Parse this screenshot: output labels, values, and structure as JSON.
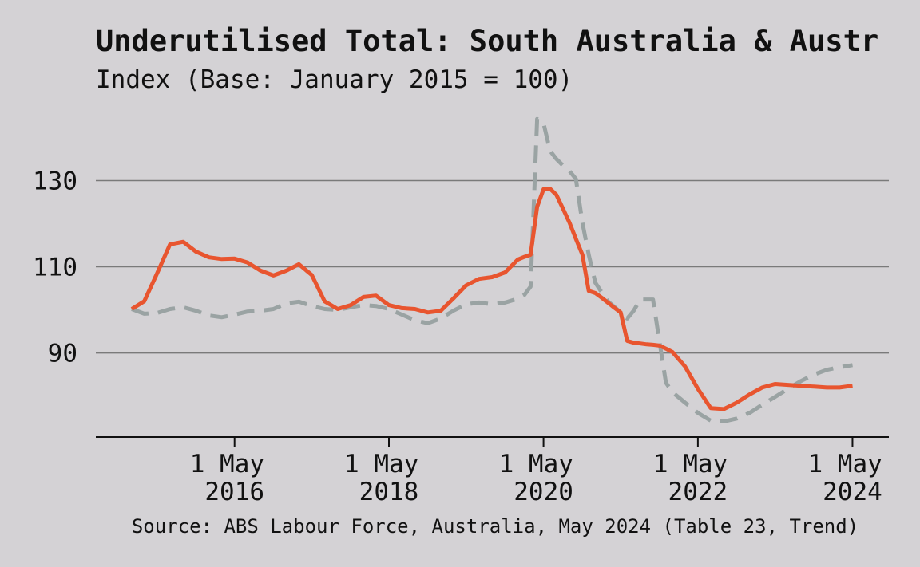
{
  "chart_data": {
    "type": "line",
    "title": "Underutilised Total: South Australia & Austr",
    "subtitle": "Index (Base: January 2015 = 100)",
    "source": "Source: ABS Labour Force, Australia, May 2024 (Table 23, Trend)",
    "x": [
      "2015-01-01",
      "2015-03-01",
      "2015-05-01",
      "2015-07-01",
      "2015-09-01",
      "2015-11-01",
      "2016-01-01",
      "2016-03-01",
      "2016-05-01",
      "2016-07-01",
      "2016-09-01",
      "2016-11-01",
      "2017-01-01",
      "2017-03-01",
      "2017-05-01",
      "2017-07-01",
      "2017-09-01",
      "2017-11-01",
      "2018-01-01",
      "2018-03-01",
      "2018-05-01",
      "2018-07-01",
      "2018-09-01",
      "2018-11-01",
      "2019-01-01",
      "2019-03-01",
      "2019-05-01",
      "2019-07-01",
      "2019-09-01",
      "2019-11-01",
      "2020-01-01",
      "2020-02-01",
      "2020-03-01",
      "2020-04-01",
      "2020-05-01",
      "2020-06-01",
      "2020-07-01",
      "2020-08-01",
      "2020-09-01",
      "2020-10-01",
      "2020-11-01",
      "2020-12-01",
      "2021-01-01",
      "2021-02-01",
      "2021-03-01",
      "2021-04-01",
      "2021-05-01",
      "2021-06-01",
      "2021-07-01",
      "2021-08-01",
      "2021-09-01",
      "2021-10-01",
      "2021-11-01",
      "2021-12-01",
      "2022-01-01",
      "2022-03-01",
      "2022-05-01",
      "2022-07-01",
      "2022-09-01",
      "2022-11-01",
      "2023-01-01",
      "2023-03-01",
      "2023-05-01",
      "2023-07-01",
      "2023-09-01",
      "2023-11-01",
      "2024-01-01",
      "2024-03-01",
      "2024-05-01"
    ],
    "series": [
      {
        "color": "#e8552f",
        "dash": false,
        "values": [
          100.2,
          102,
          108.5,
          115.2,
          115.8,
          113.5,
          112.2,
          111.8,
          111.9,
          111,
          109.1,
          108,
          109.1,
          110.6,
          108.1,
          102,
          100.2,
          101.1,
          103,
          103.3,
          101.1,
          100.4,
          100.2,
          99.4,
          99.8,
          102.6,
          105.7,
          107.2,
          107.6,
          108.7,
          111.7,
          112.3,
          112.8,
          123.9,
          128,
          128.1,
          126.7,
          123.5,
          120.2,
          116.5,
          112.8,
          104.4,
          103.9,
          102.8,
          101.7,
          100.5,
          99.4,
          92.8,
          92.4,
          92.2,
          92,
          91.9,
          91.7,
          91,
          90.2,
          86.9,
          81.7,
          77.2,
          77,
          78.5,
          80.4,
          82,
          82.8,
          82.6,
          82.4,
          82.2,
          82,
          82,
          82.4
        ]
      },
      {
        "color": "#9aa3a3",
        "dash": true,
        "values": [
          100.2,
          99.1,
          99.3,
          100.2,
          100.6,
          99.8,
          98.7,
          98.3,
          98.9,
          99.6,
          99.8,
          100.2,
          101.5,
          101.9,
          100.9,
          100.2,
          100,
          100.6,
          101.1,
          100.9,
          100.2,
          98.9,
          97.6,
          96.9,
          98,
          99.8,
          101.3,
          101.7,
          101.3,
          101.7,
          102.6,
          103.5,
          105.4,
          144.3,
          143.3,
          136.9,
          135,
          133.5,
          132.2,
          130.4,
          120.2,
          112.8,
          106.3,
          104,
          102,
          100.7,
          99.4,
          98,
          99.8,
          102.4,
          102.4,
          102.4,
          92.4,
          83.1,
          80.9,
          78.5,
          76.1,
          74.3,
          74.1,
          74.8,
          76.1,
          78,
          79.8,
          81.7,
          83.5,
          85,
          86.1,
          86.7,
          87.2
        ]
      }
    ],
    "xlim": [
      "2014-07-15",
      "2024-10-20"
    ],
    "xticks": [
      {
        "value": "2016-05-01",
        "label": "1 May 2016"
      },
      {
        "value": "2018-05-01",
        "label": "1 May 2018"
      },
      {
        "value": "2020-05-01",
        "label": "1 May 2020"
      },
      {
        "value": "2022-05-01",
        "label": "1 May 2022"
      },
      {
        "value": "2024-05-01",
        "label": "1 May 2024"
      }
    ],
    "ylim": [
      70.5,
      146
    ],
    "yticks": [
      90,
      110,
      130
    ],
    "grid": true
  }
}
